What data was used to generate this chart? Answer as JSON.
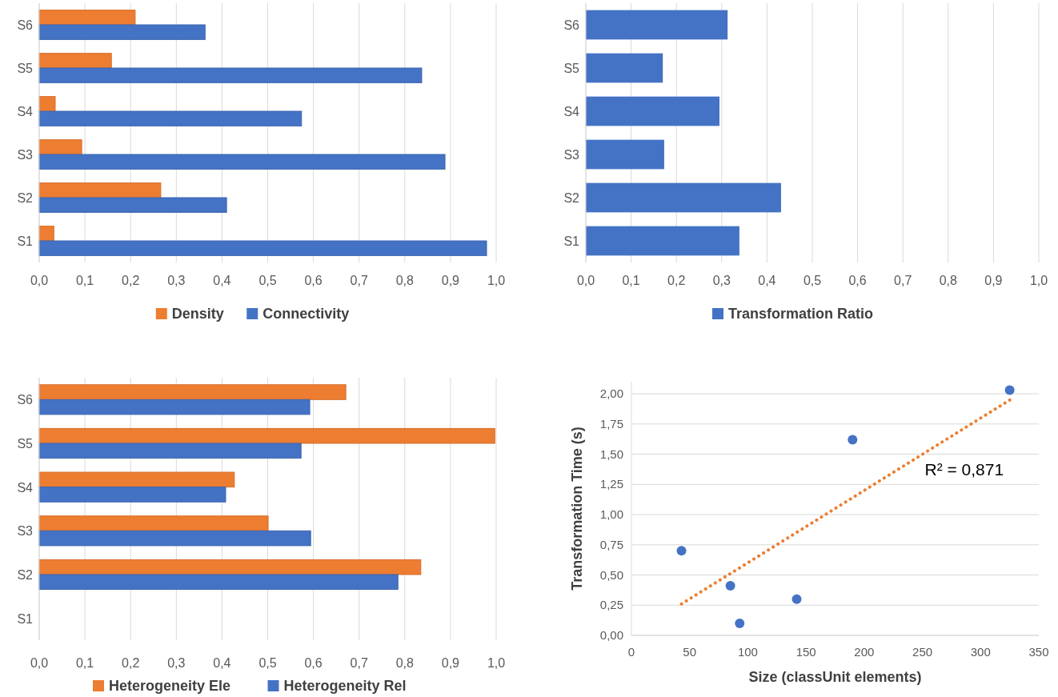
{
  "chart_data": [
    {
      "type": "bar",
      "orientation": "horizontal",
      "categories": [
        "S6",
        "S5",
        "S4",
        "S3",
        "S2",
        "S1"
      ],
      "grid": "x",
      "legend": "bottom",
      "xlim": [
        0,
        1
      ],
      "xticks": [
        {
          "value": 0,
          "label": "0,0"
        },
        {
          "value": 0.1,
          "label": "0,1"
        },
        {
          "value": 0.2,
          "label": "0,2"
        },
        {
          "value": 0.3,
          "label": "0,3"
        },
        {
          "value": 0.4,
          "label": "0,4"
        },
        {
          "value": 0.5,
          "label": "0,5"
        },
        {
          "value": 0.6,
          "label": "0,6"
        },
        {
          "value": 0.7,
          "label": "0,7"
        },
        {
          "value": 0.8,
          "label": "0,8"
        },
        {
          "value": 0.9,
          "label": "0,9"
        },
        {
          "value": 1,
          "label": "1,0"
        }
      ],
      "series": [
        {
          "name": "Density",
          "color": "#ed7d31",
          "values": [
            0.21,
            0.158,
            0.035,
            0.093,
            0.266,
            0.032
          ]
        },
        {
          "name": "Connectivity",
          "color": "#4472c4",
          "values": [
            0.363,
            0.837,
            0.574,
            0.888,
            0.41,
            0.979
          ]
        }
      ]
    },
    {
      "type": "bar",
      "orientation": "horizontal",
      "categories": [
        "S6",
        "S5",
        "S4",
        "S3",
        "S2",
        "S1"
      ],
      "grid": "x",
      "legend": "bottom",
      "xlim": [
        0,
        1
      ],
      "xticks": [
        {
          "value": 0,
          "label": "0,0"
        },
        {
          "value": 0.1,
          "label": "0,1"
        },
        {
          "value": 0.2,
          "label": "0,2"
        },
        {
          "value": 0.3,
          "label": "0,3"
        },
        {
          "value": 0.4,
          "label": "0,4"
        },
        {
          "value": 0.5,
          "label": "0,5"
        },
        {
          "value": 0.6,
          "label": "0,6"
        },
        {
          "value": 0.7,
          "label": "0,7"
        },
        {
          "value": 0.8,
          "label": "0,8"
        },
        {
          "value": 0.9,
          "label": "0,9"
        },
        {
          "value": 1,
          "label": "1,0"
        }
      ],
      "series": [
        {
          "name": "Transformation Ratio",
          "color": "#4472c4",
          "values": [
            0.313,
            0.17,
            0.295,
            0.173,
            0.431,
            0.339
          ]
        }
      ]
    },
    {
      "type": "bar",
      "orientation": "horizontal",
      "categories": [
        "S6",
        "S5",
        "S4",
        "S3",
        "S2",
        "S1"
      ],
      "grid": "x",
      "legend": "bottom",
      "xlim": [
        0,
        1
      ],
      "xticks": [
        {
          "value": 0,
          "label": "0,0"
        },
        {
          "value": 0.1,
          "label": "0,1"
        },
        {
          "value": 0.2,
          "label": "0,2"
        },
        {
          "value": 0.3,
          "label": "0,3"
        },
        {
          "value": 0.4,
          "label": "0,4"
        },
        {
          "value": 0.5,
          "label": "0,5"
        },
        {
          "value": 0.6,
          "label": "0,6"
        },
        {
          "value": 0.7,
          "label": "0,7"
        },
        {
          "value": 0.8,
          "label": "0,8"
        },
        {
          "value": 0.9,
          "label": "0,9"
        },
        {
          "value": 1,
          "label": "1,0"
        }
      ],
      "series": [
        {
          "name": "Heterogeneity Ele",
          "color": "#ed7d31",
          "values": [
            0.671,
            0.997,
            0.427,
            0.501,
            0.835,
            null
          ]
        },
        {
          "name": "Heterogeneity Rel",
          "color": "#4472c4",
          "values": [
            0.592,
            0.573,
            0.408,
            0.594,
            0.785,
            null
          ]
        }
      ]
    },
    {
      "type": "scatter",
      "xlabel": "Size (classUnit elements)",
      "ylabel": "Transformation Time (s)",
      "grid": "y",
      "legend": false,
      "marker": "circle",
      "xlim": [
        0,
        350
      ],
      "ylim": [
        0,
        2.1
      ],
      "xticks": [
        0,
        50,
        100,
        150,
        200,
        250,
        300,
        350
      ],
      "yticks": [
        {
          "value": 0,
          "label": "0,00"
        },
        {
          "value": 0.25,
          "label": "0,25"
        },
        {
          "value": 0.5,
          "label": "0,50"
        },
        {
          "value": 0.75,
          "label": "0,75"
        },
        {
          "value": 1,
          "label": "1,00"
        },
        {
          "value": 1.25,
          "label": "1,25"
        },
        {
          "value": 1.5,
          "label": "1,50"
        },
        {
          "value": 1.75,
          "label": "1,75"
        },
        {
          "value": 2,
          "label": "2,00"
        }
      ],
      "annotations": [
        "R² = 0,871"
      ],
      "series": [
        {
          "color": "#4472c4",
          "x": [
            43,
            85,
            93,
            142,
            190,
            325
          ],
          "values": [
            0.7,
            0.41,
            0.1,
            0.3,
            1.62,
            2.03
          ]
        },
        {
          "type": "line",
          "line_style": "dotted",
          "marker": "none",
          "color": "#ed7d31",
          "x": [
            43,
            327
          ],
          "values": [
            0.26,
            1.96
          ]
        }
      ]
    }
  ]
}
